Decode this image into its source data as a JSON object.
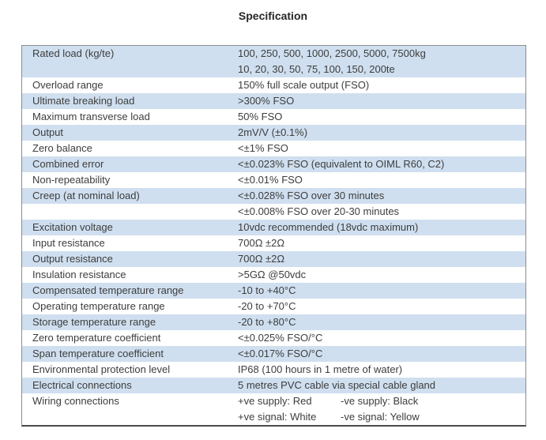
{
  "title": "Specification",
  "colors": {
    "row_blue": "#cfdfef",
    "row_white": "#ffffff",
    "border": "#8c8c8c",
    "border_bottom": "#4a4a4a",
    "text": "#3d3d3d",
    "title_text": "#262626"
  },
  "table": {
    "rows": [
      {
        "label": "Rated load (kg/te)",
        "value": "100, 250, 500, 1000, 2500, 5000, 7500kg",
        "shade": "blue"
      },
      {
        "label": "",
        "value": "10, 20, 30, 50, 75, 100, 150, 200te",
        "shade": "blue"
      },
      {
        "label": "Overload range",
        "value": "150% full scale output (FSO)",
        "shade": "white"
      },
      {
        "label": "Ultimate breaking load",
        "value": ">300% FSO",
        "shade": "blue"
      },
      {
        "label": "Maximum transverse load",
        "value": "50% FSO",
        "shade": "white"
      },
      {
        "label": "Output",
        "value": "2mV/V (±0.1%)",
        "shade": "blue"
      },
      {
        "label": "Zero balance",
        "value": "<±1% FSO",
        "shade": "white"
      },
      {
        "label": "Combined error",
        "value": "<±0.023% FSO (equivalent to OIML R60, C2)",
        "shade": "blue"
      },
      {
        "label": "Non-repeatability",
        "value": "<±0.01% FSO",
        "shade": "white"
      },
      {
        "label": "Creep (at nominal load)",
        "value": "<±0.028% FSO over 30 minutes",
        "shade": "blue"
      },
      {
        "label": "",
        "value": "<±0.008% FSO over 20-30 minutes",
        "shade": "white"
      },
      {
        "label": "Excitation voltage",
        "value": "10vdc recommended (18vdc maximum)",
        "shade": "blue"
      },
      {
        "label": "Input resistance",
        "value": "700Ω ±2Ω",
        "shade": "white"
      },
      {
        "label": "Output resistance",
        "value": "700Ω ±2Ω",
        "shade": "blue"
      },
      {
        "label": "Insulation resistance",
        "value": ">5GΩ @50vdc",
        "shade": "white"
      },
      {
        "label": "Compensated temperature range",
        "value": "-10 to +40°C",
        "shade": "blue"
      },
      {
        "label": "Operating temperature range",
        "value": "-20 to +70°C",
        "shade": "white"
      },
      {
        "label": "Storage temperature range",
        "value": "-20 to +80°C",
        "shade": "blue"
      },
      {
        "label": "Zero temperature coefficient",
        "value": "<±0.025% FSO/°C",
        "shade": "white"
      },
      {
        "label": "Span temperature coefficient",
        "value": "<±0.017% FSO/°C",
        "shade": "blue"
      },
      {
        "label": "Environmental protection level",
        "value": "IP68 (100 hours in 1 metre of water)",
        "shade": "white"
      },
      {
        "label": "Electrical connections",
        "value": "5 metres PVC cable via special cable gland",
        "shade": "blue"
      },
      {
        "label": "Wiring connections",
        "value": {
          "left": "+ve supply: Red",
          "right": "-ve supply: Black"
        },
        "shade": "white"
      },
      {
        "label": "",
        "value": {
          "left": "+ve signal: White",
          "right": "-ve signal: Yellow"
        },
        "shade": "white"
      }
    ]
  }
}
